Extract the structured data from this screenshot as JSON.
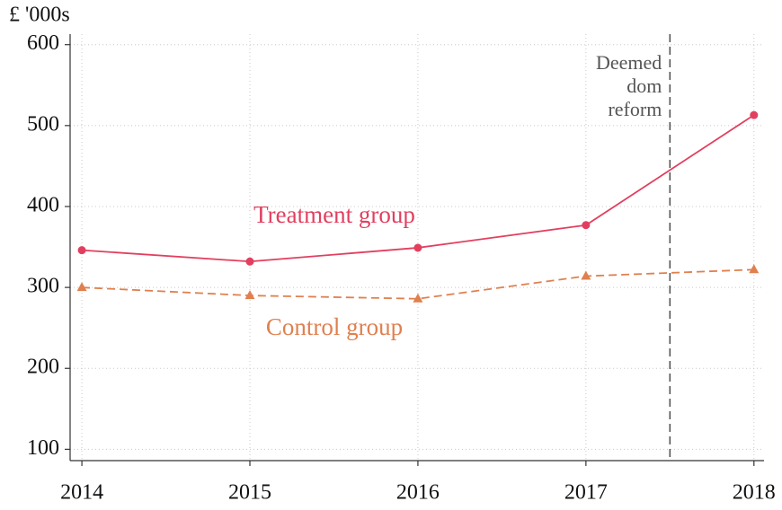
{
  "chart_data": {
    "type": "line",
    "ylabel": "£ '000s",
    "x": [
      2014,
      2015,
      2016,
      2017,
      2018
    ],
    "series": [
      {
        "name": "Treatment group",
        "color": "#e23f5f",
        "line_style": "solid",
        "marker": "circle",
        "values": [
          346,
          332,
          349,
          377,
          513
        ]
      },
      {
        "name": "Control group",
        "color": "#e0804f",
        "line_style": "dashed",
        "marker": "triangle",
        "values": [
          300,
          290,
          286,
          314,
          322
        ]
      }
    ],
    "vline": {
      "x": 2017.5,
      "label": [
        "Deemed",
        "dom",
        "reform"
      ],
      "color": "#555555"
    },
    "xlim": [
      2013.93,
      2018.06
    ],
    "ylim": [
      86,
      613
    ],
    "xticks": [
      2014,
      2015,
      2016,
      2017,
      2018
    ],
    "yticks": [
      100,
      200,
      300,
      400,
      500,
      600
    ],
    "grid": true
  }
}
